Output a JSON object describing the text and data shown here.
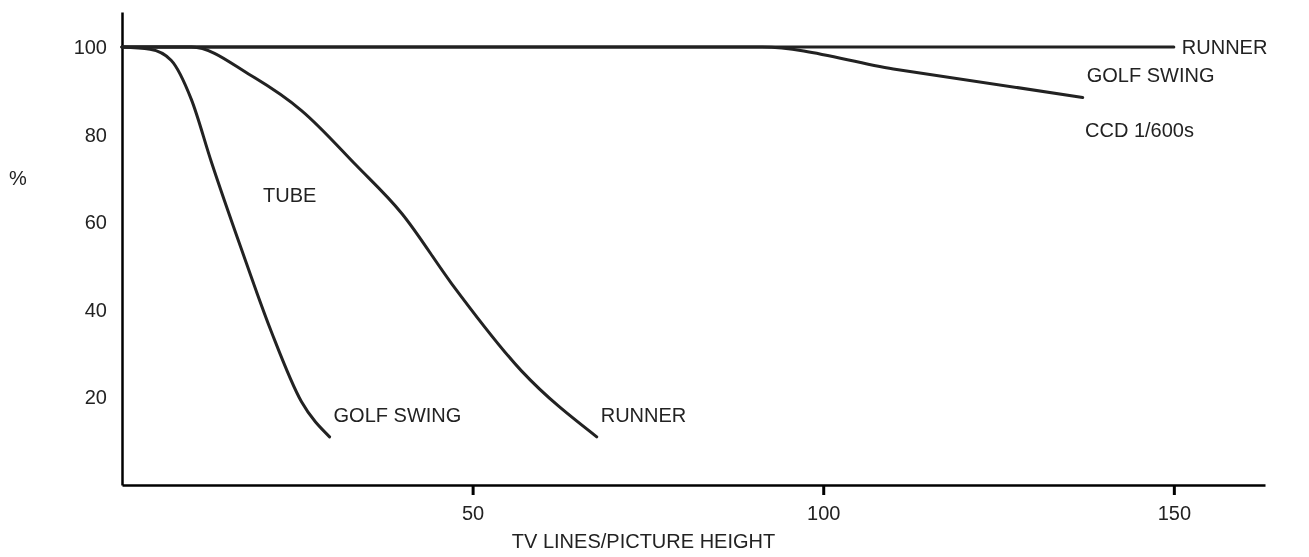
{
  "chart_data": {
    "type": "line",
    "xlabel": "TV LINES/PICTURE HEIGHT",
    "ylabel": "%",
    "xlim": [
      0,
      163
    ],
    "ylim": [
      0,
      108
    ],
    "xticks": [
      50,
      100,
      150
    ],
    "yticks": [
      20,
      40,
      60,
      80,
      100
    ],
    "grid": false,
    "marker": "none",
    "line_style": "solid",
    "series": [
      {
        "name": "RUNNER",
        "color": "#222222",
        "x": [
          0,
          150
        ],
        "values": [
          100,
          100
        ]
      },
      {
        "name": "GOLF SWING",
        "color": "#222222",
        "x": [
          0,
          91,
          110,
          137
        ],
        "values": [
          100,
          100,
          95,
          88.5
        ]
      },
      {
        "name": "GOLF SWING",
        "color": "#222222",
        "x": [
          0,
          4,
          7,
          9.9,
          12.7,
          17,
          21.3,
          25.6,
          29.6
        ],
        "values": [
          100,
          99.5,
          97,
          88,
          74,
          54,
          35,
          19,
          11
        ]
      },
      {
        "name": "RUNNER",
        "color": "#222222",
        "x": [
          0,
          9.9,
          18.4,
          25.6,
          33.4,
          39.9,
          47,
          57,
          67.7
        ],
        "values": [
          100,
          100,
          93.5,
          85.5,
          73,
          62,
          46,
          26,
          11
        ]
      }
    ],
    "annotations": [
      "CCD 1/600s",
      "TUBE"
    ]
  }
}
